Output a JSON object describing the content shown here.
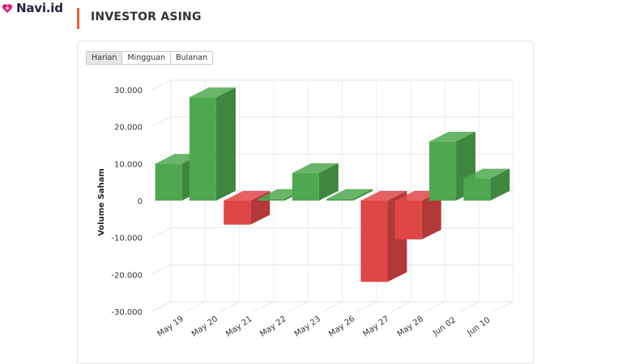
{
  "brand": {
    "name": "Navi.id",
    "accent": "#e8197d"
  },
  "header": {
    "title": "INVESTOR ASING",
    "accent": "#e8632d"
  },
  "tabs": [
    {
      "label": "Harian",
      "active": true
    },
    {
      "label": "Mingguan",
      "active": false
    },
    {
      "label": "Bulanan",
      "active": false
    }
  ],
  "chart_data": {
    "type": "bar",
    "style": "3d-column",
    "categories": [
      "May 19",
      "May 20",
      "May 21",
      "May 22",
      "May 23",
      "May 26",
      "May 27",
      "May 28",
      "Jun 02",
      "Jun 10"
    ],
    "values": [
      10000,
      28000,
      -6500,
      500,
      7500,
      500,
      -22000,
      -10500,
      16000,
      6000
    ],
    "xlabel": "",
    "ylabel": "Volume Saham",
    "ylim": [
      -30000,
      30000
    ],
    "yticks": [
      30000,
      20000,
      10000,
      0,
      -10000,
      -20000,
      -30000
    ],
    "ytick_labels": [
      "30.000",
      "20.000",
      "10.000",
      "0",
      "-10.000",
      "-20.000",
      "-30.000"
    ],
    "grid": true,
    "legend": "none",
    "colors": {
      "positive": "#4fa84f",
      "negative": "#e04646"
    }
  }
}
